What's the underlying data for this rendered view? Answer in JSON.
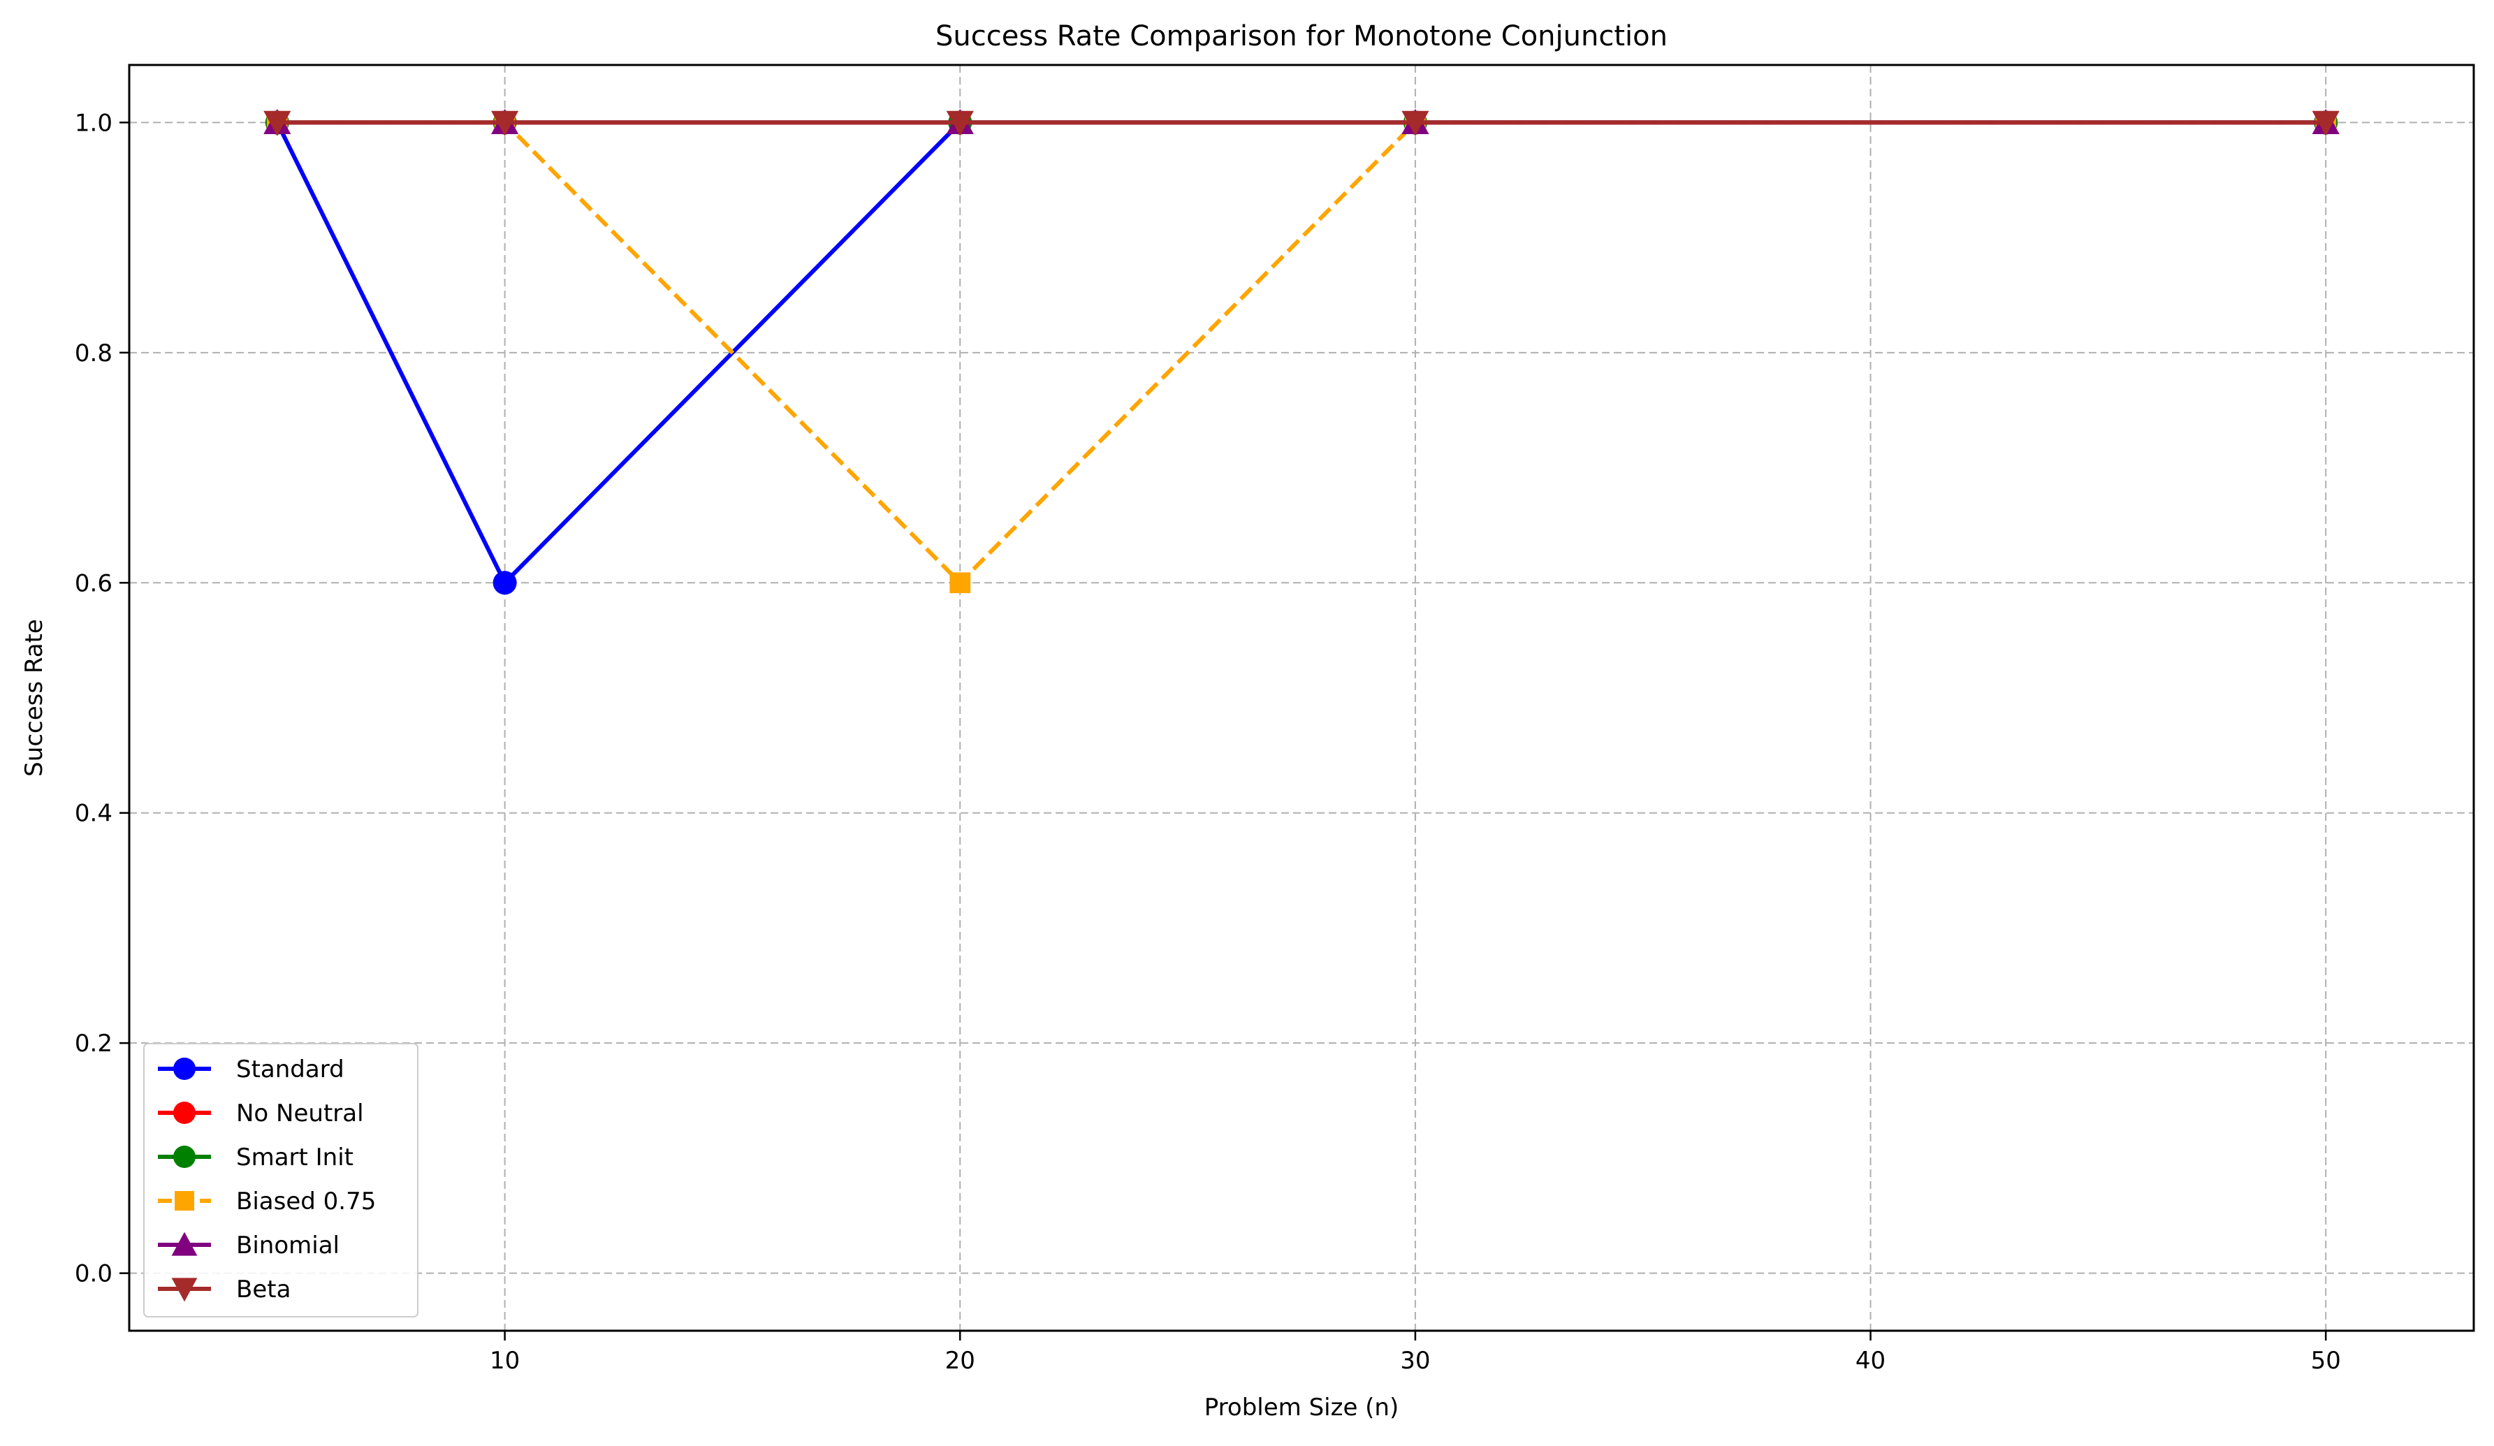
{
  "chart_data": {
    "type": "line",
    "title": "Success Rate Comparison for Monotone Conjunction",
    "xlabel": "Problem Size (n)",
    "ylabel": "Success Rate",
    "x": [
      5,
      10,
      20,
      30,
      50
    ],
    "xlim": [
      1.75,
      53.25
    ],
    "ylim": [
      -0.05,
      1.05
    ],
    "xticks": [
      10,
      20,
      30,
      40,
      50
    ],
    "xtick_labels": [
      "10",
      "20",
      "30",
      "40",
      "50"
    ],
    "yticks": [
      0.0,
      0.2,
      0.4,
      0.6,
      0.8,
      1.0
    ],
    "ytick_labels": [
      "0.0",
      "0.2",
      "0.4",
      "0.6",
      "0.8",
      "1.0"
    ],
    "grid": true,
    "legend_position": "lower-left",
    "series": [
      {
        "name": "Standard",
        "values": [
          1.0,
          0.6,
          1.0,
          1.0,
          1.0
        ],
        "color": "#0000ff",
        "marker": "circle",
        "linestyle": "solid"
      },
      {
        "name": "No Neutral",
        "values": [
          1.0,
          1.0,
          1.0,
          1.0,
          1.0
        ],
        "color": "#ff0000",
        "marker": "circle",
        "linestyle": "solid"
      },
      {
        "name": "Smart Init",
        "values": [
          1.0,
          1.0,
          1.0,
          1.0,
          1.0
        ],
        "color": "#008000",
        "marker": "circle",
        "linestyle": "solid"
      },
      {
        "name": "Biased 0.75",
        "values": [
          1.0,
          1.0,
          0.6,
          1.0,
          1.0
        ],
        "color": "#ffa500",
        "marker": "square",
        "linestyle": "dashed"
      },
      {
        "name": "Binomial",
        "values": [
          1.0,
          1.0,
          1.0,
          1.0,
          1.0
        ],
        "color": "#800080",
        "marker": "triangle-up",
        "linestyle": "solid"
      },
      {
        "name": "Beta",
        "values": [
          1.0,
          1.0,
          1.0,
          1.0,
          1.0
        ],
        "color": "#a52a2a",
        "marker": "triangle-down",
        "linestyle": "solid"
      }
    ]
  }
}
